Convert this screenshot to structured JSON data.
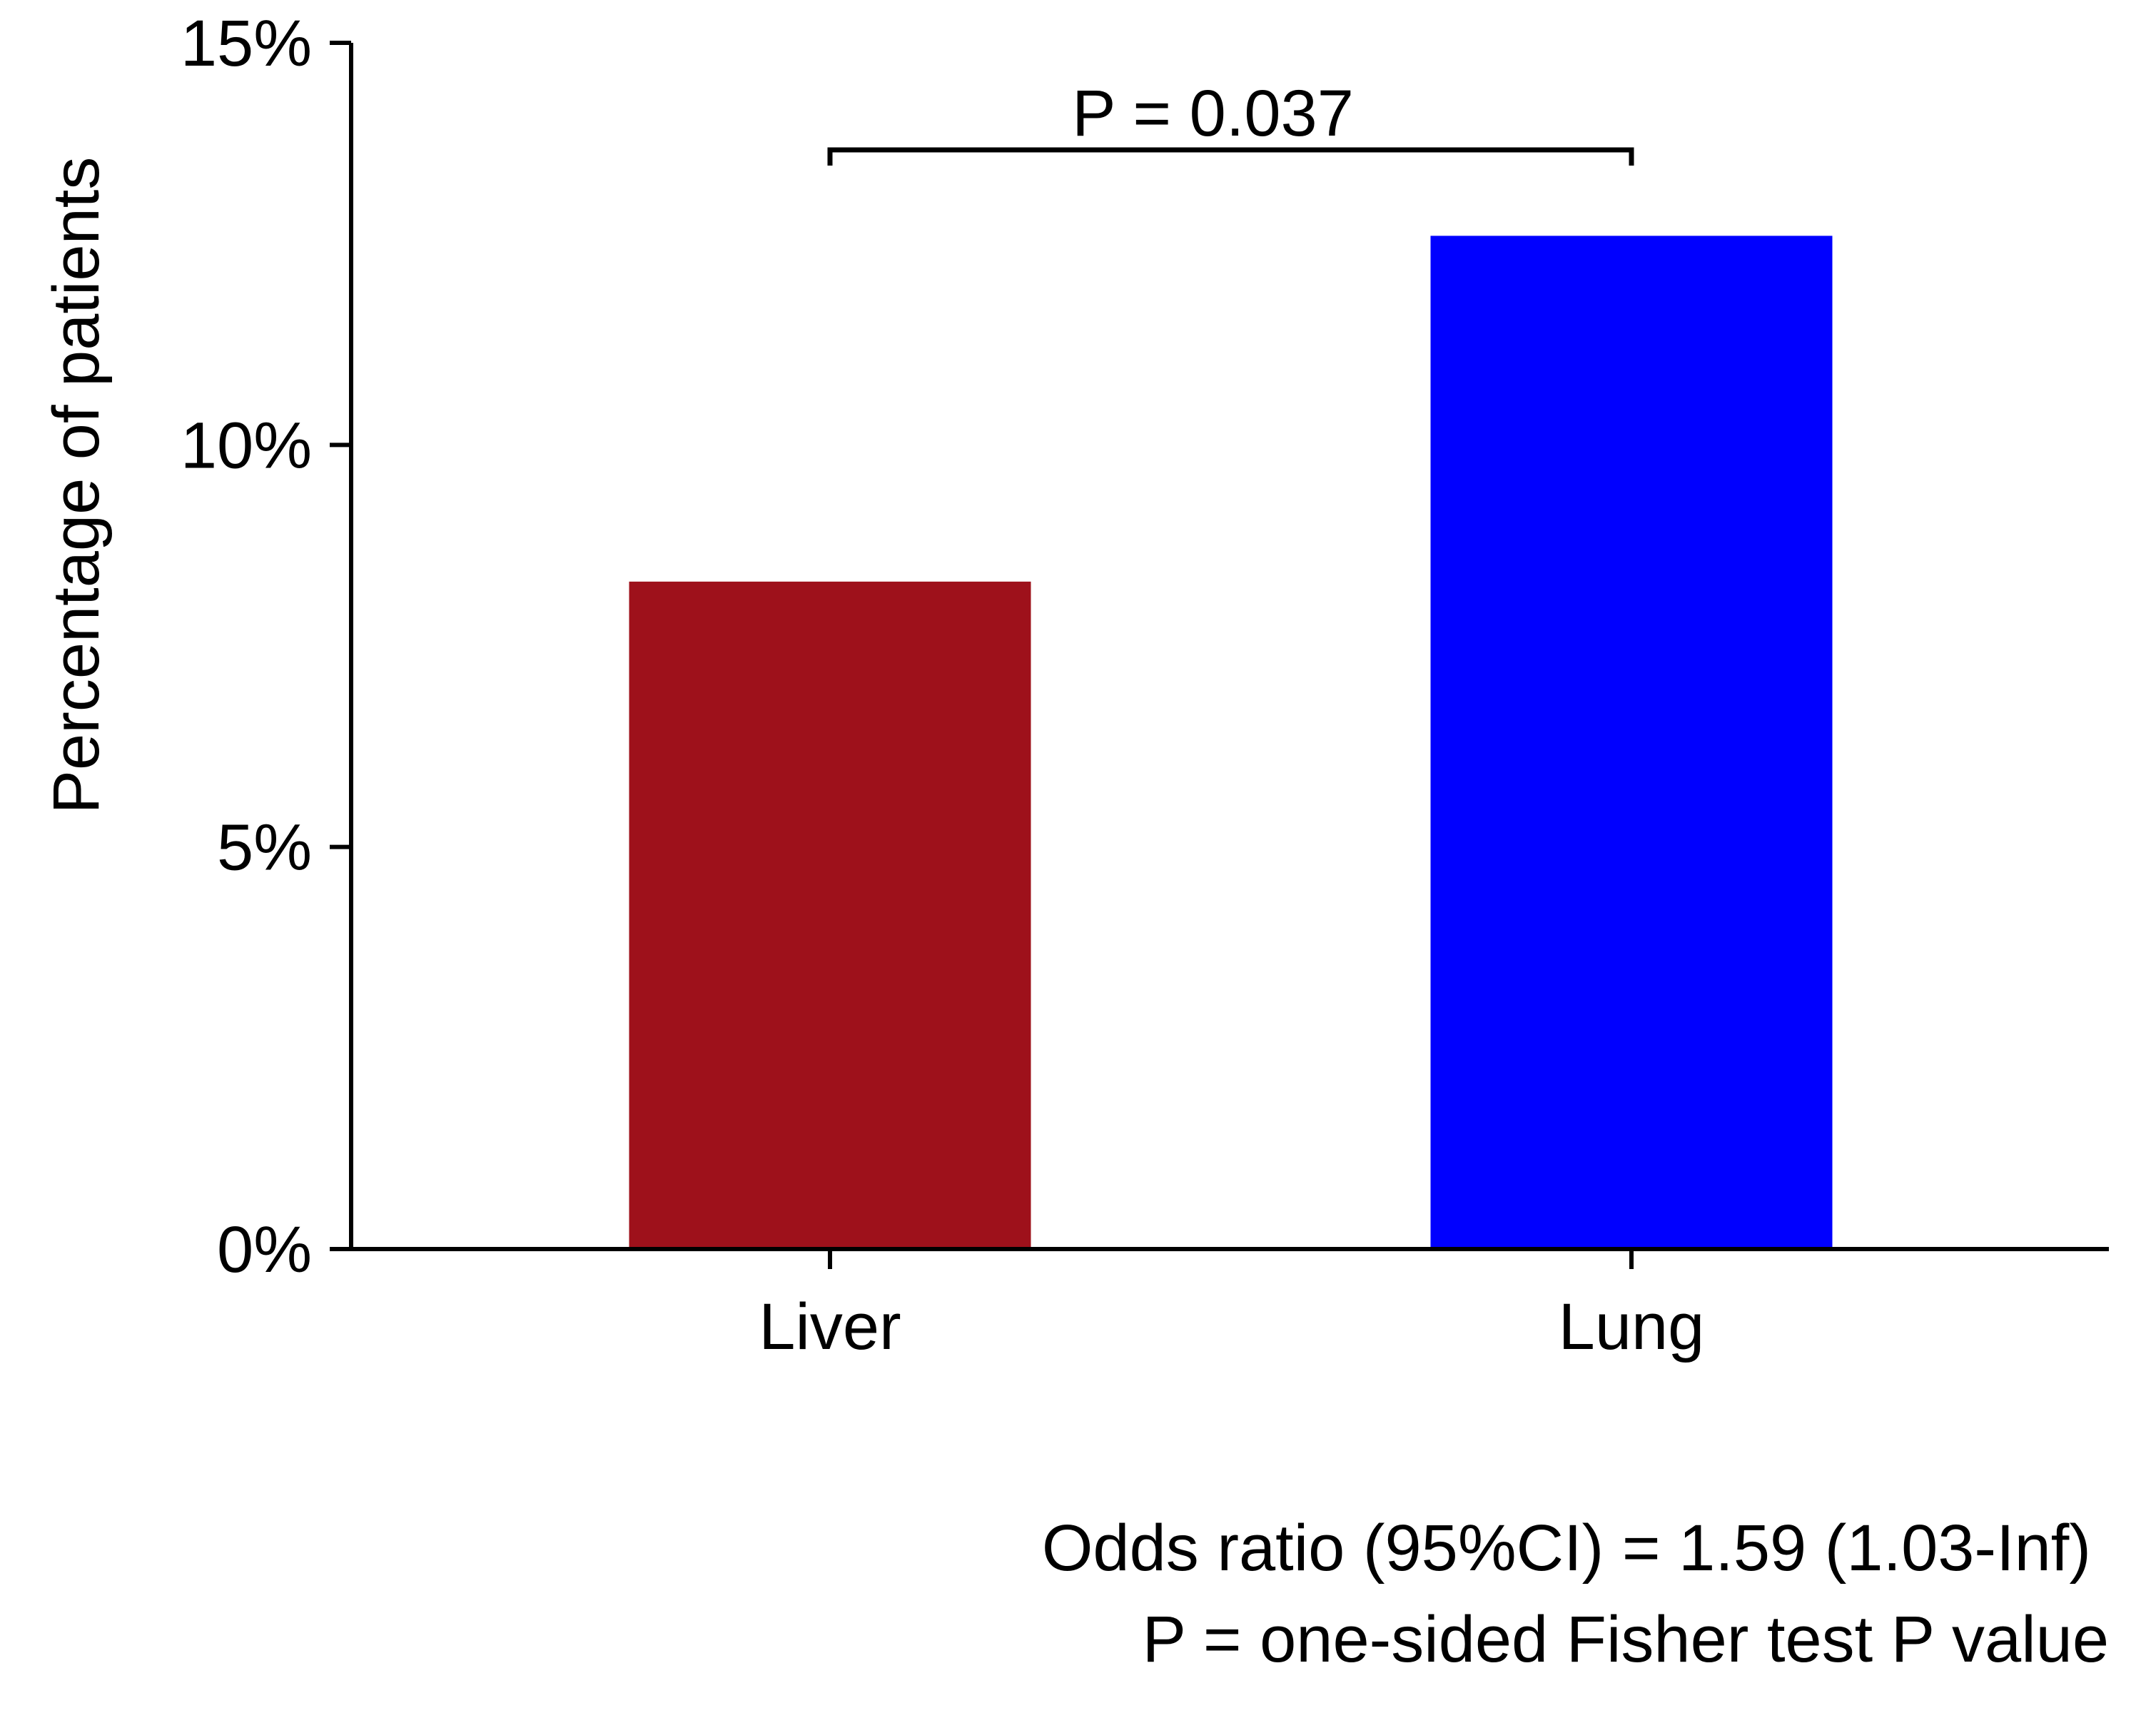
{
  "chart_data": {
    "type": "bar",
    "categories": [
      "Liver",
      "Lung"
    ],
    "values": [
      8.3,
      12.6
    ],
    "colors": [
      "#9e111b",
      "#0000ff"
    ],
    "ylabel": "Percentage of patients",
    "xlabel": "",
    "ylim": [
      0,
      15
    ],
    "yticks": [
      {
        "value": 0,
        "label": "0%"
      },
      {
        "value": 5,
        "label": "5%"
      },
      {
        "value": 10,
        "label": "10%"
      },
      {
        "value": 15,
        "label": "15%"
      }
    ],
    "grid": false,
    "annotation": {
      "text": "P = 0.037",
      "from": "Liver",
      "to": "Lung"
    },
    "footnotes": [
      "Odds ratio (95%CI) =  1.59 (1.03-Inf)",
      "P = one-sided Fisher test P value"
    ]
  }
}
